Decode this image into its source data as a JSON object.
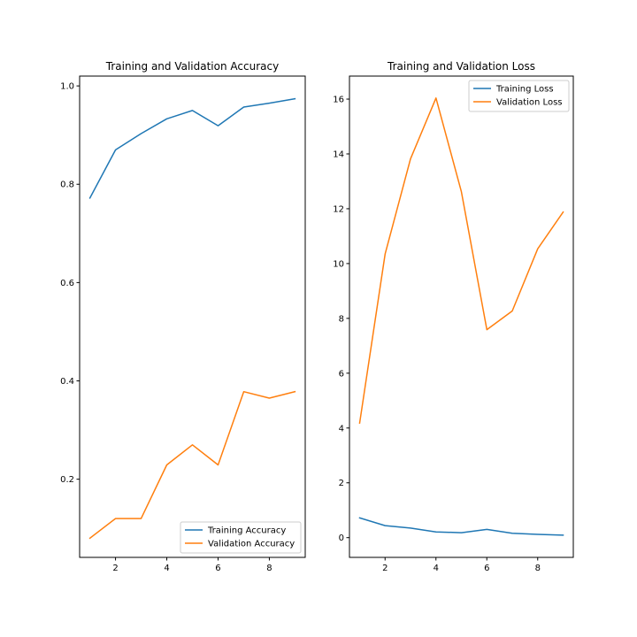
{
  "chart_data": [
    {
      "type": "line",
      "title": "Training and Validation Accuracy",
      "xlabel": "",
      "ylabel": "",
      "xlim": [
        0.6,
        9.4
      ],
      "ylim": [
        0.041,
        1.02
      ],
      "xticks": [
        2,
        4,
        6,
        8
      ],
      "yticks": [
        0.2,
        0.4,
        0.6,
        0.8,
        1.0
      ],
      "ytick_labels": [
        "0.2",
        "0.4",
        "0.6",
        "0.8",
        "1.0"
      ],
      "grid": false,
      "legend_position": "lower-right",
      "x": [
        1,
        2,
        3,
        4,
        5,
        6,
        7,
        8,
        9
      ],
      "series": [
        {
          "name": "Training Accuracy",
          "color": "#1f77b4",
          "values": [
            0.772,
            0.87,
            0.903,
            0.933,
            0.95,
            0.919,
            0.957,
            0.965,
            0.974
          ]
        },
        {
          "name": "Validation Accuracy",
          "color": "#ff7f0e",
          "values": [
            0.08,
            0.12,
            0.12,
            0.229,
            0.27,
            0.229,
            0.378,
            0.365,
            0.378
          ]
        }
      ]
    },
    {
      "type": "line",
      "title": "Training and Validation Loss",
      "xlabel": "",
      "ylabel": "",
      "xlim": [
        0.6,
        9.4
      ],
      "ylim": [
        -0.72,
        16.84
      ],
      "xticks": [
        2,
        4,
        6,
        8
      ],
      "yticks": [
        0,
        2,
        4,
        6,
        8,
        10,
        12,
        14,
        16
      ],
      "ytick_labels": [
        "0",
        "2",
        "4",
        "6",
        "8",
        "10",
        "12",
        "14",
        "16"
      ],
      "grid": false,
      "legend_position": "upper-right",
      "x": [
        1,
        2,
        3,
        4,
        5,
        6,
        7,
        8,
        9
      ],
      "series": [
        {
          "name": "Training Loss",
          "color": "#1f77b4",
          "values": [
            0.72,
            0.44,
            0.35,
            0.21,
            0.18,
            0.3,
            0.16,
            0.12,
            0.09
          ]
        },
        {
          "name": "Validation Loss",
          "color": "#ff7f0e",
          "values": [
            4.18,
            10.35,
            13.82,
            16.04,
            12.62,
            7.59,
            8.27,
            10.54,
            11.88
          ]
        }
      ]
    }
  ]
}
